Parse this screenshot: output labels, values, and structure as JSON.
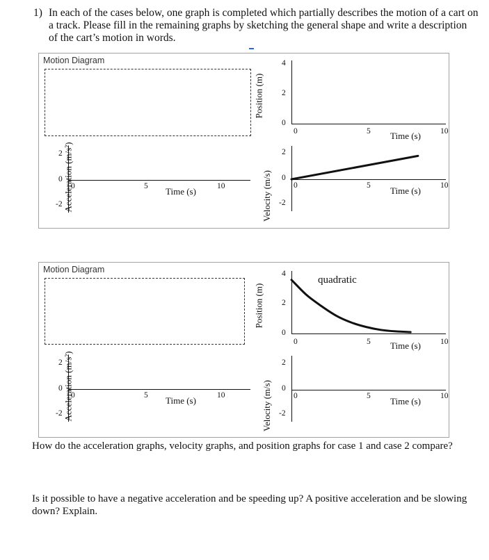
{
  "question": {
    "number": "1)",
    "text": "In each of the cases below, one graph is completed which partially describes the motion of a cart on a track.  Please fill in the remaining graphs by sketching the general shape and write a description of the cart’s motion in words."
  },
  "case1": {
    "motion_diagram_label": "Motion Diagram",
    "position_graph": {
      "ylabel": "Position (m)",
      "yticks": [
        "4",
        "2",
        "0"
      ],
      "xticks": [
        "0",
        "5",
        "10"
      ],
      "xlabel": "Time (s)"
    },
    "acceleration_graph": {
      "ylabel": "Acceleration (m/s²)",
      "yticks": [
        "2",
        "0",
        "-2"
      ],
      "xticks": [
        "0",
        "5",
        "10"
      ],
      "xlabel": "Time (s)"
    },
    "velocity_graph": {
      "ylabel": "Velocity (m/s)",
      "yticks": [
        "2",
        "0",
        "-2"
      ],
      "xticks": [
        "0",
        "5",
        "10"
      ],
      "xlabel": "Time (s)"
    }
  },
  "case2": {
    "motion_diagram_label": "Motion Diagram",
    "position_graph": {
      "ylabel": "Position (m)",
      "yticks": [
        "4",
        "2",
        "0"
      ],
      "xticks": [
        "0",
        "5",
        "10"
      ],
      "xlabel": "Time (s)",
      "annotation": "quadratic"
    },
    "acceleration_graph": {
      "ylabel": "Acceleration (m/s²)",
      "yticks": [
        "2",
        "0",
        "-2"
      ],
      "xticks": [
        "0",
        "5",
        "10"
      ],
      "xlabel": "Time (s)"
    },
    "velocity_graph": {
      "ylabel": "Velocity (m/s)",
      "yticks": [
        "2",
        "0",
        "-2"
      ],
      "xticks": [
        "0",
        "5",
        "10"
      ],
      "xlabel": "Time (s)"
    }
  },
  "followups": {
    "compare": "How do the acceleration graphs, velocity graphs, and position graphs for case 1 and case 2 compare?",
    "negative_accel": "Is it possible to have a negative acceleration and be speeding up?  A positive acceleration and be slowing down?  Explain."
  },
  "chart_data": [
    {
      "type": "line",
      "title": "",
      "xlabel": "Time (s)",
      "ylabel": "Velocity (m/s)",
      "xlim": [
        0,
        10
      ],
      "ylim": [
        -2,
        2
      ],
      "series": [
        {
          "x": [
            0,
            8.5
          ],
          "y": [
            0,
            1.6
          ]
        }
      ]
    },
    {
      "type": "line",
      "title": "",
      "xlabel": "Time (s)",
      "ylabel": "Position (m)",
      "xlim": [
        0,
        10
      ],
      "ylim": [
        0,
        4
      ],
      "annotation": "quadratic",
      "series": [
        {
          "x": [
            0,
            1,
            2,
            3,
            4,
            5,
            6,
            7,
            8
          ],
          "y": [
            3.5,
            2.5,
            1.75,
            1.1,
            0.65,
            0.35,
            0.15,
            0.05,
            0
          ]
        }
      ]
    }
  ]
}
